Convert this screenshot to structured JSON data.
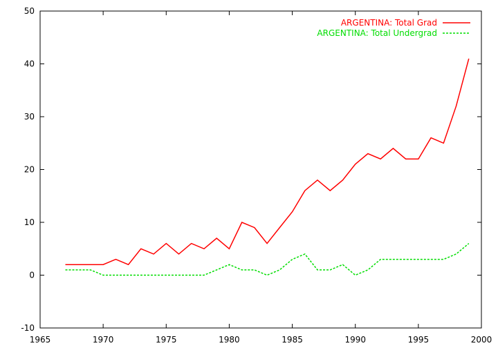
{
  "chart_data": {
    "type": "line",
    "title": "",
    "xlabel": "",
    "ylabel": "",
    "xlim": [
      1965,
      2000
    ],
    "ylim": [
      -10,
      50
    ],
    "xticks": [
      1965,
      1970,
      1975,
      1980,
      1985,
      1990,
      1995,
      2000
    ],
    "yticks": [
      -10,
      0,
      10,
      20,
      30,
      40,
      50
    ],
    "grid": false,
    "legend_position": "top-right",
    "x": [
      1967,
      1968,
      1969,
      1970,
      1971,
      1972,
      1973,
      1974,
      1975,
      1976,
      1977,
      1978,
      1979,
      1980,
      1981,
      1982,
      1983,
      1984,
      1985,
      1986,
      1987,
      1988,
      1989,
      1990,
      1991,
      1992,
      1993,
      1994,
      1995,
      1996,
      1997,
      1998,
      1999
    ],
    "series": [
      {
        "name": "ARGENTINA: Total Grad",
        "color": "#ff0000",
        "dash": "solid",
        "values": [
          2,
          2,
          2,
          2,
          3,
          2,
          5,
          4,
          6,
          4,
          6,
          5,
          7,
          5,
          10,
          9,
          6,
          9,
          12,
          16,
          18,
          16,
          18,
          21,
          23,
          22,
          24,
          22,
          22,
          26,
          25,
          32,
          41
        ]
      },
      {
        "name": "ARGENTINA: Total Undergrad",
        "color": "#00dd00",
        "dash": "dashed",
        "values": [
          1,
          1,
          1,
          0,
          0,
          0,
          0,
          0,
          0,
          0,
          0,
          0,
          1,
          2,
          1,
          1,
          0,
          1,
          3,
          4,
          1,
          1,
          2,
          0,
          1,
          3,
          3,
          3,
          3,
          3,
          3,
          4,
          6
        ]
      }
    ]
  }
}
